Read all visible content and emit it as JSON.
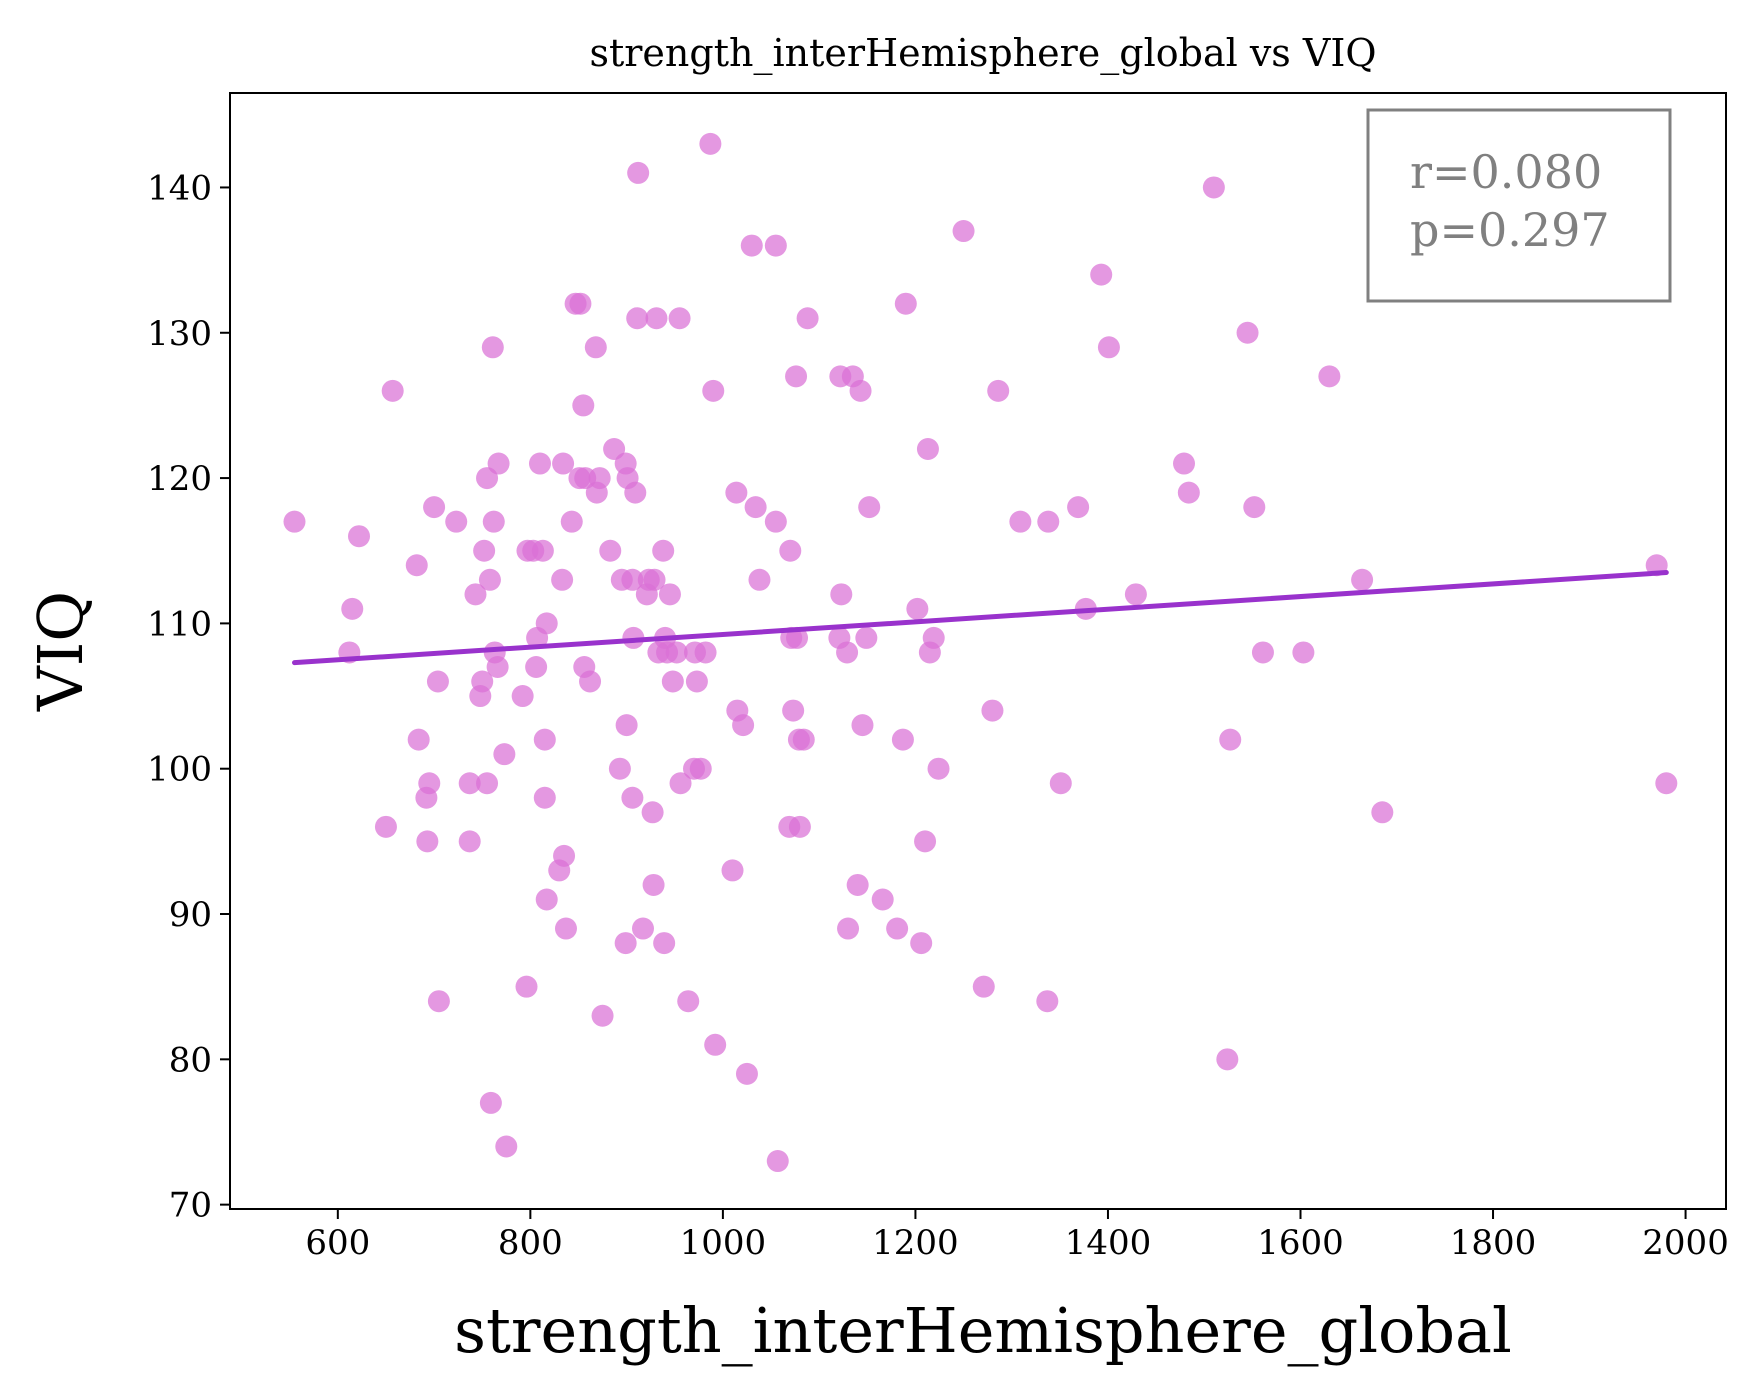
{
  "chart_data": {
    "type": "scatter",
    "title": "strength_interHemisphere_global vs VIQ",
    "xlabel": "strength_interHemisphere_global",
    "ylabel": "VIQ",
    "xlim": [
      488,
      2042
    ],
    "ylim": [
      69.7,
      146.5
    ],
    "xticks": [
      "600",
      "800",
      "1000",
      "1200",
      "1400",
      "1600",
      "1800",
      "2000"
    ],
    "yticks": [
      "70",
      "80",
      "90",
      "100",
      "110",
      "120",
      "130",
      "140"
    ],
    "grid": false,
    "point_color": "#DA70D6",
    "line_color": "#9932CC",
    "annotation": {
      "r": "r=0.080",
      "p": "p=0.297",
      "placement": "top-right"
    },
    "fit_line": {
      "x": [
        555,
        1980
      ],
      "y": [
        107.3,
        113.5
      ]
    },
    "points": [
      [
        555,
        117
      ],
      [
        612,
        108
      ],
      [
        615,
        111
      ],
      [
        622,
        116
      ],
      [
        650,
        96
      ],
      [
        657,
        126
      ],
      [
        682,
        114
      ],
      [
        684,
        102
      ],
      [
        692,
        98
      ],
      [
        693,
        95
      ],
      [
        695,
        99
      ],
      [
        700,
        118
      ],
      [
        704,
        106
      ],
      [
        705,
        84
      ],
      [
        723,
        117
      ],
      [
        737,
        95
      ],
      [
        737,
        99
      ],
      [
        743,
        112
      ],
      [
        748,
        105
      ],
      [
        750,
        106
      ],
      [
        752,
        115
      ],
      [
        755,
        120
      ],
      [
        755,
        99
      ],
      [
        758,
        113
      ],
      [
        759,
        77
      ],
      [
        761,
        129
      ],
      [
        762,
        117
      ],
      [
        763,
        108
      ],
      [
        766,
        107
      ],
      [
        767,
        121
      ],
      [
        773,
        101
      ],
      [
        775,
        74
      ],
      [
        792,
        105
      ],
      [
        796,
        85
      ],
      [
        797,
        115
      ],
      [
        803,
        115
      ],
      [
        806,
        107
      ],
      [
        807,
        109
      ],
      [
        810,
        121
      ],
      [
        813,
        115
      ],
      [
        815,
        102
      ],
      [
        815,
        98
      ],
      [
        817,
        110
      ],
      [
        817,
        91
      ],
      [
        830,
        93
      ],
      [
        833,
        113
      ],
      [
        834,
        121
      ],
      [
        835,
        94
      ],
      [
        837,
        89
      ],
      [
        843,
        117
      ],
      [
        847,
        132
      ],
      [
        852,
        132
      ],
      [
        851,
        120
      ],
      [
        855,
        125
      ],
      [
        856,
        107
      ],
      [
        857,
        120
      ],
      [
        862,
        106
      ],
      [
        868,
        129
      ],
      [
        869,
        119
      ],
      [
        872,
        120
      ],
      [
        875,
        83
      ],
      [
        883,
        115
      ],
      [
        887,
        122
      ],
      [
        893,
        100
      ],
      [
        895,
        113
      ],
      [
        899,
        121
      ],
      [
        899,
        88
      ],
      [
        900,
        103
      ],
      [
        901,
        120
      ],
      [
        906,
        113
      ],
      [
        906,
        98
      ],
      [
        907,
        109
      ],
      [
        909,
        119
      ],
      [
        911,
        131
      ],
      [
        912,
        141
      ],
      [
        917,
        89
      ],
      [
        921,
        112
      ],
      [
        923,
        113
      ],
      [
        927,
        97
      ],
      [
        928,
        92
      ],
      [
        929,
        113
      ],
      [
        931,
        131
      ],
      [
        933,
        108
      ],
      [
        938,
        115
      ],
      [
        939,
        88
      ],
      [
        940,
        109
      ],
      [
        942,
        108
      ],
      [
        945,
        112
      ],
      [
        948,
        106
      ],
      [
        952,
        108
      ],
      [
        955,
        131
      ],
      [
        956,
        99
      ],
      [
        964,
        84
      ],
      [
        970,
        100
      ],
      [
        971,
        108
      ],
      [
        973,
        106
      ],
      [
        977,
        100
      ],
      [
        982,
        108
      ],
      [
        987,
        143
      ],
      [
        990,
        126
      ],
      [
        992,
        81
      ],
      [
        1010,
        93
      ],
      [
        1014,
        119
      ],
      [
        1015,
        104
      ],
      [
        1021,
        103
      ],
      [
        1025,
        79
      ],
      [
        1030,
        136
      ],
      [
        1034,
        118
      ],
      [
        1038,
        113
      ],
      [
        1055,
        117
      ],
      [
        1055,
        136
      ],
      [
        1057,
        73
      ],
      [
        1069,
        96
      ],
      [
        1070,
        115
      ],
      [
        1071,
        109
      ],
      [
        1073,
        104
      ],
      [
        1076,
        127
      ],
      [
        1077,
        109
      ],
      [
        1079,
        102
      ],
      [
        1080,
        96
      ],
      [
        1084,
        102
      ],
      [
        1088,
        131
      ],
      [
        1121,
        109
      ],
      [
        1122,
        127
      ],
      [
        1123,
        112
      ],
      [
        1129,
        108
      ],
      [
        1130,
        89
      ],
      [
        1135,
        127
      ],
      [
        1140,
        92
      ],
      [
        1143,
        126
      ],
      [
        1145,
        103
      ],
      [
        1149,
        109
      ],
      [
        1152,
        118
      ],
      [
        1166,
        91
      ],
      [
        1181,
        89
      ],
      [
        1187,
        102
      ],
      [
        1190,
        132
      ],
      [
        1202,
        111
      ],
      [
        1206,
        88
      ],
      [
        1210,
        95
      ],
      [
        1213,
        122
      ],
      [
        1215,
        108
      ],
      [
        1219,
        109
      ],
      [
        1224,
        100
      ],
      [
        1250,
        137
      ],
      [
        1271,
        85
      ],
      [
        1280,
        104
      ],
      [
        1286,
        126
      ],
      [
        1309,
        117
      ],
      [
        1337,
        84
      ],
      [
        1338,
        117
      ],
      [
        1351,
        99
      ],
      [
        1369,
        118
      ],
      [
        1377,
        111
      ],
      [
        1393,
        134
      ],
      [
        1401,
        129
      ],
      [
        1429,
        112
      ],
      [
        1479,
        121
      ],
      [
        1484,
        119
      ],
      [
        1510,
        140
      ],
      [
        1524,
        80
      ],
      [
        1527,
        102
      ],
      [
        1545,
        130
      ],
      [
        1552,
        118
      ],
      [
        1561,
        108
      ],
      [
        1603,
        108
      ],
      [
        1630,
        127
      ],
      [
        1664,
        113
      ],
      [
        1685,
        97
      ],
      [
        1970,
        114
      ],
      [
        1980,
        99
      ]
    ]
  }
}
